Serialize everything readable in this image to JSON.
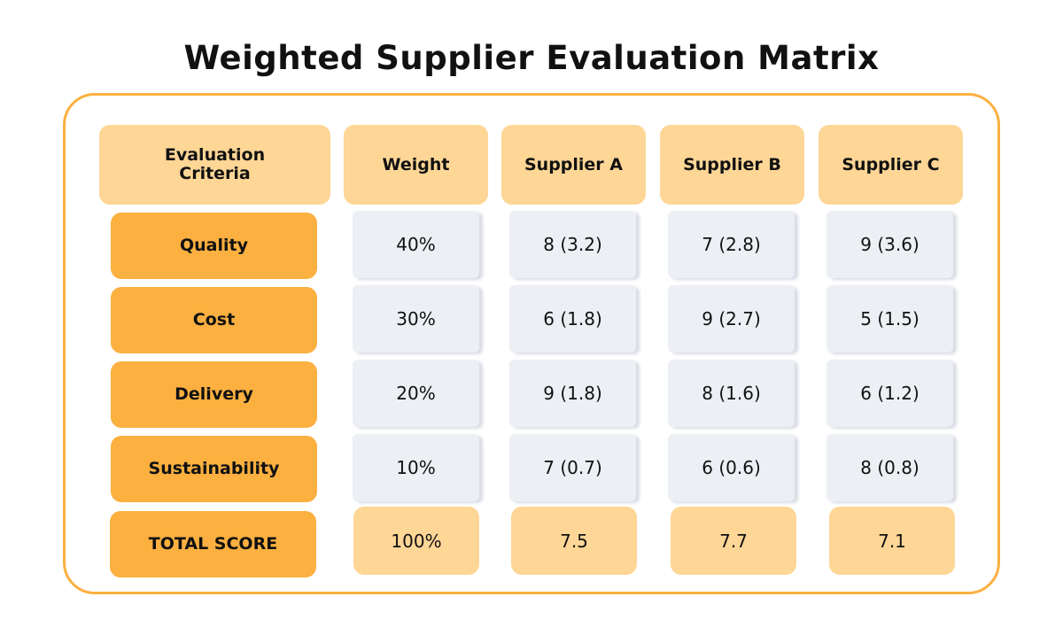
{
  "title": "Weighted Supplier Evaluation Matrix",
  "colors": {
    "frame": "#fbb040",
    "header": "#fed696",
    "criteria": "#fbb040",
    "value_cell": "#eceff3",
    "total_cell": "#fed696"
  },
  "headers": [
    "Evaluation Criteria",
    "Weight",
    "Supplier A",
    "Supplier B",
    "Supplier C"
  ],
  "rows": [
    {
      "criteria": "Quality",
      "cells": [
        "40%",
        "8 (3.2)",
        "7 (2.8)",
        "9 (3.6)"
      ]
    },
    {
      "criteria": "Cost",
      "cells": [
        "30%",
        "6 (1.8)",
        "9 (2.7)",
        "5 (1.5)"
      ]
    },
    {
      "criteria": "Delivery",
      "cells": [
        "20%",
        "9 (1.8)",
        "8 (1.6)",
        "6 (1.2)"
      ]
    },
    {
      "criteria": "Sustainability",
      "cells": [
        "10%",
        "7 (0.7)",
        "6 (0.6)",
        "8 (0.8)"
      ]
    }
  ],
  "total": {
    "label": "TOTAL SCORE",
    "cells": [
      "100%",
      "7.5",
      "7.7",
      "7.1"
    ]
  }
}
